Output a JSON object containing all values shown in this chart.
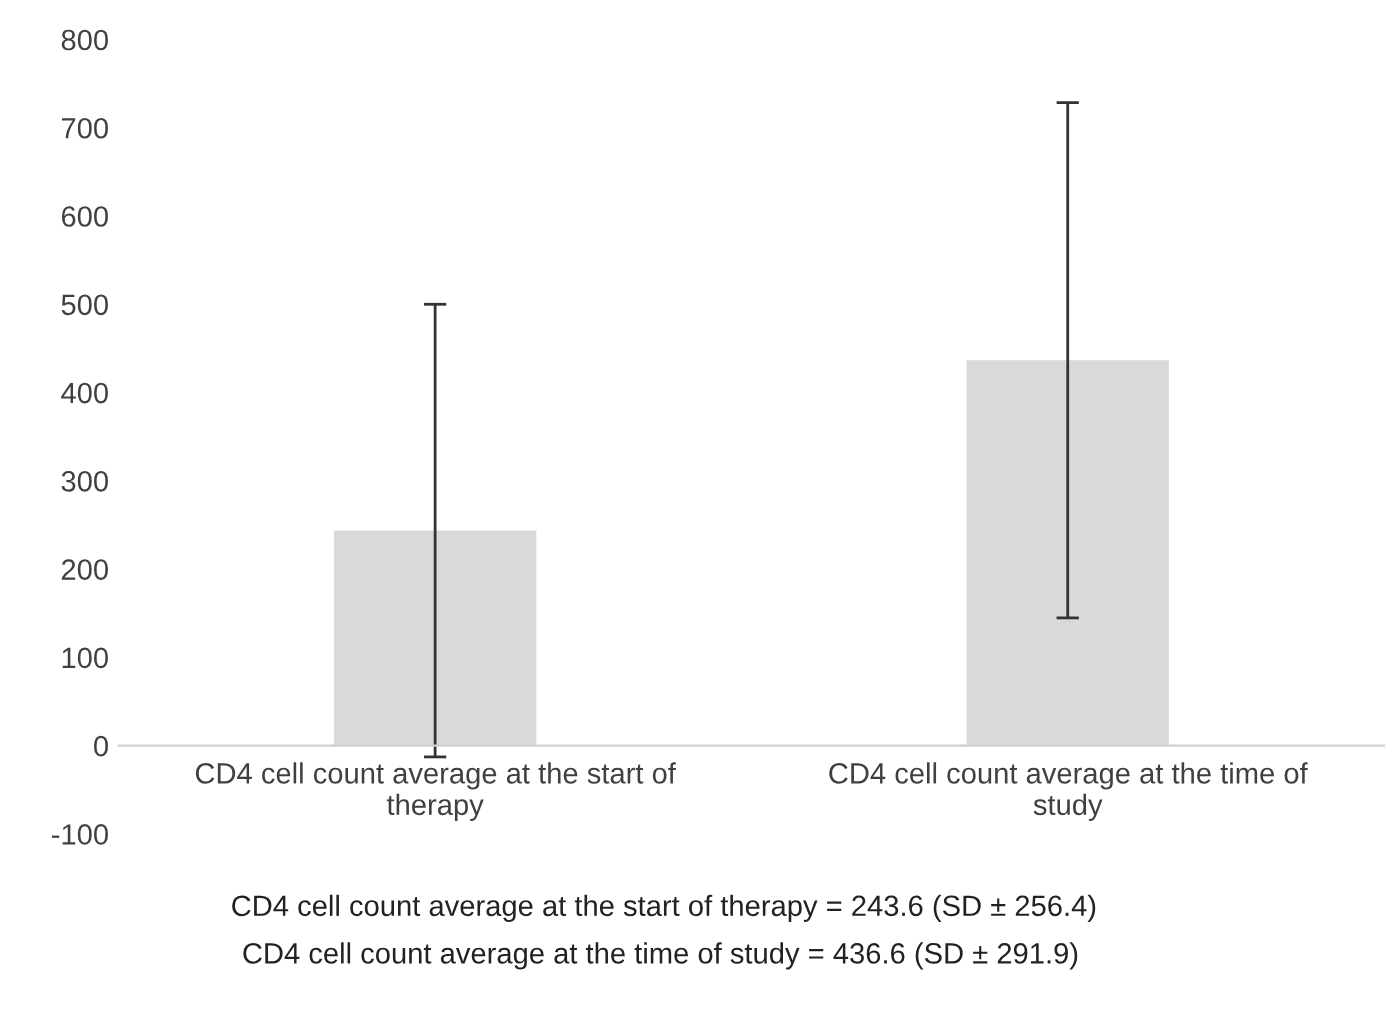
{
  "chart_data": {
    "type": "bar",
    "categories": [
      "CD4 cell count average at the start of\ntherapy",
      "CD4 cell count average at the time of\nstudy"
    ],
    "values": [
      243.6,
      436.6
    ],
    "errors": [
      256.4,
      291.9
    ],
    "color": "#d9d9d9",
    "ylim": [
      -100,
      800
    ],
    "yticks": [
      -100,
      0,
      100,
      200,
      300,
      400,
      500,
      600,
      700,
      800
    ],
    "grid": false,
    "legend": false,
    "annotations": [
      "CD4 cell count average at the start of therapy = 243.6 (SD ± 256.4)",
      "CD4 cell count average at the time of study = 436.6 (SD ± 291.9)"
    ]
  }
}
